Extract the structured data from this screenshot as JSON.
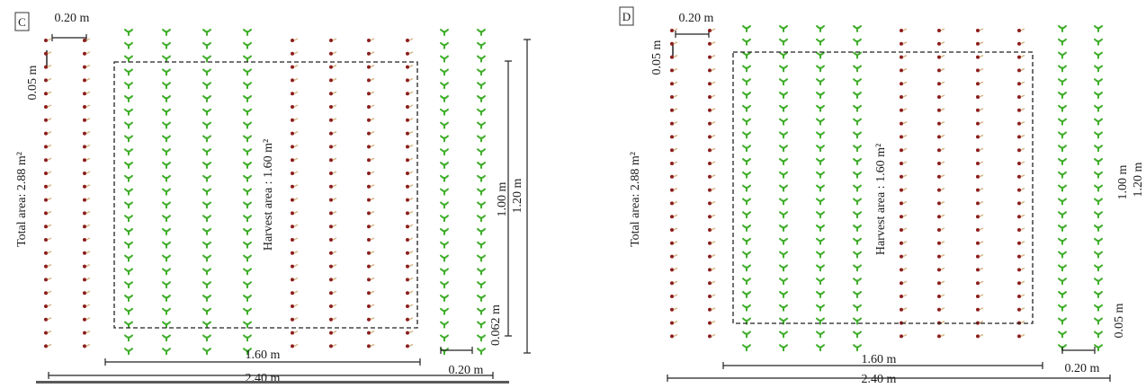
{
  "colors": {
    "background": "#ffffff",
    "crop_a_plant": "#3fae2a",
    "crop_b_plant": "#8c1c1c",
    "crop_b_leaf": "#d8b88a",
    "lines": "#222222",
    "baseline_rule": "#5a5a5a"
  },
  "panels": [
    {
      "id": "C",
      "label": "C",
      "row_spacing": "0.20 m",
      "plant_spacing": "0.05 m",
      "total_area": "Total area: 2.88 m²",
      "harvest_area": "Harvest area : 1.60 m²",
      "harvest_height": "1.00 m",
      "plot_height": "1.20 m",
      "edge_gap": "0.062 m",
      "harvest_width": "1.60 m",
      "plot_width": "2.40 m",
      "border_gap": "0.20 m",
      "row_pattern": [
        "B",
        "B",
        "A",
        "A",
        "A",
        "A",
        "B",
        "B",
        "B",
        "B",
        "A",
        "A"
      ]
    },
    {
      "id": "D",
      "label": "D",
      "row_spacing": "0.20 m",
      "plant_spacing": "0.05 m",
      "total_area": "Total area: 2.88 m²",
      "harvest_area": "Harvest area : 1.60 m²",
      "harvest_height": "1.00 m",
      "plot_height": "1.20 m",
      "edge_gap": "0.05 m",
      "harvest_width": "1.60 m",
      "plot_width": "2.40 m",
      "border_gap": "0.20 m",
      "row_pattern": [
        "B",
        "B",
        "A",
        "A",
        "A",
        "A",
        "B",
        "B",
        "B",
        "B",
        "A",
        "A"
      ]
    }
  ]
}
